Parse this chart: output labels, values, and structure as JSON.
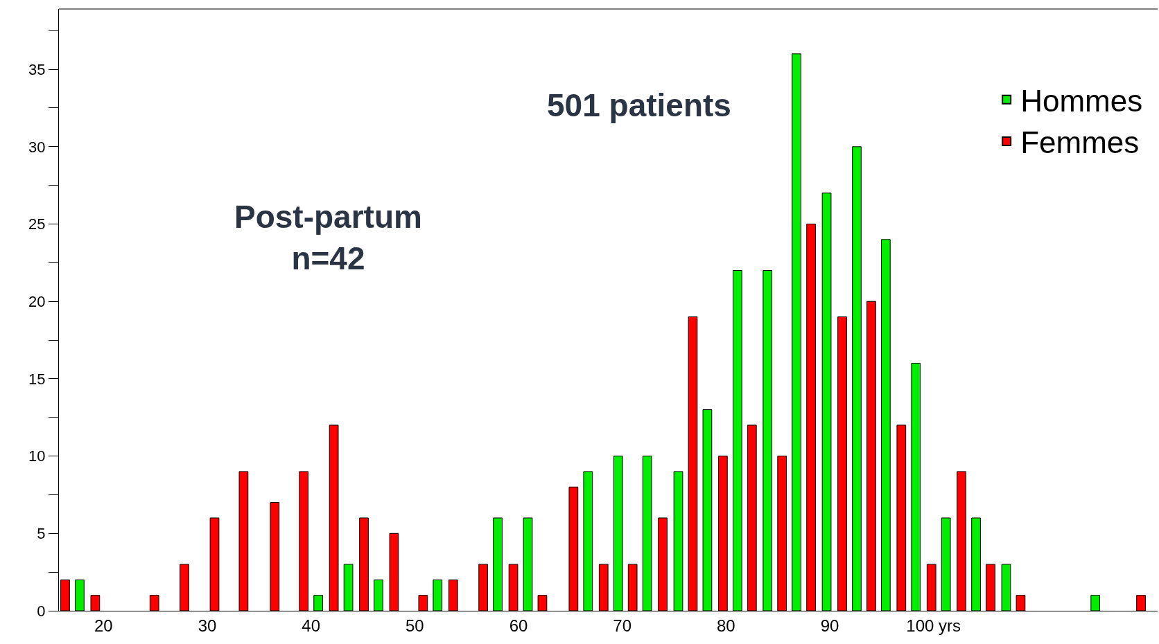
{
  "chart_data": {
    "type": "bar",
    "annotations": [
      "501 patients",
      "Post-partum\nn=42"
    ],
    "series": [
      {
        "name": "Hommes",
        "color": "#00ee00",
        "x": [
          17.7,
          40.7,
          43.6,
          46.5,
          52.2,
          58.0,
          60.9,
          66.7,
          69.6,
          72.4,
          75.4,
          78.2,
          81.1,
          84.0,
          86.8,
          89.7,
          92.6,
          95.4,
          98.3,
          101.2,
          104.1,
          107.0,
          115.6
        ],
        "values": [
          2,
          1,
          3,
          2,
          2,
          6,
          6,
          9,
          10,
          10,
          9,
          13,
          22,
          22,
          36,
          27,
          30,
          24,
          16,
          6,
          6,
          3,
          1
        ]
      },
      {
        "name": "Femmes",
        "color": "#ff0000",
        "x": [
          16.3,
          19.2,
          24.9,
          27.8,
          30.7,
          33.5,
          36.5,
          39.3,
          42.2,
          45.1,
          48.0,
          50.8,
          53.7,
          56.6,
          59.5,
          62.3,
          65.3,
          68.2,
          71.0,
          73.9,
          76.8,
          79.7,
          82.5,
          85.4,
          88.2,
          91.2,
          94.0,
          96.9,
          99.8,
          102.7,
          105.5,
          108.4,
          120.0
        ],
        "values": [
          2,
          1,
          1,
          3,
          6,
          9,
          7,
          9,
          12,
          6,
          5,
          1,
          2,
          3,
          3,
          1,
          8,
          3,
          3,
          6,
          19,
          10,
          12,
          10,
          25,
          19,
          20,
          12,
          3,
          9,
          3,
          1,
          1
        ]
      }
    ],
    "xlim": [
      15.7,
      121.6
    ],
    "xticks": [
      20,
      30,
      40,
      50,
      60,
      70,
      80,
      90,
      {
        "value": 100,
        "label": "100 yrs"
      }
    ],
    "ylim": [
      0,
      38.9
    ],
    "yticks": [
      0,
      {
        "value": 2.5,
        "label": null
      },
      5,
      {
        "value": 7.5,
        "label": null
      },
      10,
      {
        "value": 12.5,
        "label": null
      },
      15,
      {
        "value": 17.5,
        "label": null
      },
      20,
      {
        "value": 22.5,
        "label": null
      },
      25,
      {
        "value": 27.5,
        "label": null
      },
      30,
      {
        "value": 32.5,
        "label": null
      },
      35,
      {
        "value": 37.5,
        "label": null
      }
    ],
    "legend": "top right"
  }
}
